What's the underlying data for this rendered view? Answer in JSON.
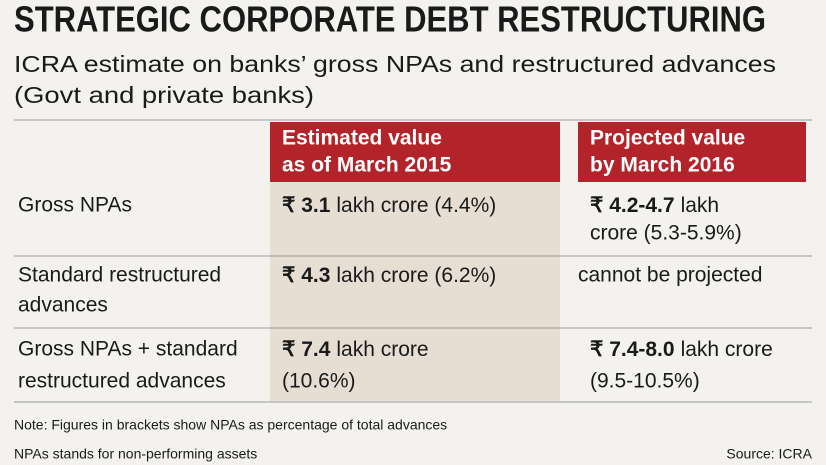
{
  "header": {
    "title": "STRATEGIC CORPORATE DEBT RESTRUCTURING",
    "subtitle": [
      "ICRA estimate on banks’ gross NPAs and restructured advances",
      "(Govt and private banks)"
    ]
  },
  "table": {
    "columns": [
      [
        "Estimated value",
        "as of March 2015"
      ],
      [
        "Projected value",
        "by March 2016"
      ]
    ],
    "rows": [
      {
        "label": [
          "Gross NPAs"
        ],
        "cells": [
          {
            "bold": "₹ 3.1",
            "lines": [
              "lakh crore (4.4%)"
            ]
          },
          {
            "bold": "₹ 4.2-4.7",
            "lines": [
              "lakh",
              "crore (5.3-5.9%)"
            ]
          }
        ]
      },
      {
        "label": [
          "Standard restructured",
          "advances"
        ],
        "cells": [
          {
            "bold": "₹ 4.3",
            "lines": [
              "lakh crore (6.2%)"
            ]
          },
          {
            "lines": [
              "cannot be projected"
            ]
          }
        ]
      },
      {
        "label": [
          "Gross NPAs + standard",
          "restructured advances"
        ],
        "cells": [
          {
            "bold": "₹ 7.4",
            "lines": [
              "lakh crore",
              "(10.6%)"
            ]
          },
          {
            "bold": "₹ 7.4-8.0",
            "lines": [
              "lakh crore",
              "(9.5-10.5%)"
            ]
          }
        ]
      }
    ]
  },
  "notes": [
    "Note: Figures in brackets show NPAs as percentage of total advances",
    "NPAs stands for non-performing assets"
  ],
  "source": "Source: ICRA"
}
